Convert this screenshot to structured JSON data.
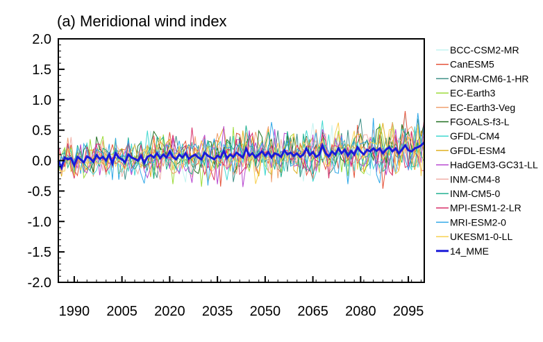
{
  "chart_data": {
    "type": "line",
    "title": "(a) Meridional wind index",
    "xlabel": "",
    "ylabel": "",
    "xlim": [
      1985,
      2100
    ],
    "ylim": [
      -2.0,
      2.0
    ],
    "xticks": [
      1990,
      2005,
      2020,
      2035,
      2050,
      2065,
      2080,
      2095
    ],
    "yticks": [
      -2.0,
      -1.5,
      -1.0,
      -0.5,
      0.0,
      0.5,
      1.0,
      1.5,
      2.0
    ],
    "ytick_labels": [
      "-2.0",
      "-1.5",
      "-1.0",
      "-0.5",
      "0.0",
      "0.5",
      "1.0",
      "1.5",
      "2.0"
    ],
    "grid": false,
    "legend_position": "right",
    "x": [
      1985,
      1986,
      1987,
      1988,
      1989,
      1990,
      1991,
      1992,
      1993,
      1994,
      1995,
      1996,
      1997,
      1998,
      1999,
      2000,
      2001,
      2002,
      2003,
      2004,
      2005,
      2006,
      2007,
      2008,
      2009,
      2010,
      2011,
      2012,
      2013,
      2014,
      2015,
      2016,
      2017,
      2018,
      2019,
      2020,
      2021,
      2022,
      2023,
      2024,
      2025,
      2026,
      2027,
      2028,
      2029,
      2030,
      2031,
      2032,
      2033,
      2034,
      2035,
      2036,
      2037,
      2038,
      2039,
      2040,
      2041,
      2042,
      2043,
      2044,
      2045,
      2046,
      2047,
      2048,
      2049,
      2050,
      2051,
      2052,
      2053,
      2054,
      2055,
      2056,
      2057,
      2058,
      2059,
      2060,
      2061,
      2062,
      2063,
      2064,
      2065,
      2066,
      2067,
      2068,
      2069,
      2070,
      2071,
      2072,
      2073,
      2074,
      2075,
      2076,
      2077,
      2078,
      2079,
      2080,
      2081,
      2082,
      2083,
      2084,
      2085,
      2086,
      2087,
      2088,
      2089,
      2090,
      2091,
      2092,
      2093,
      2094,
      2095,
      2096,
      2097,
      2098,
      2099,
      2100
    ],
    "series": [
      {
        "name": "BCC-CSM2-MR",
        "color": "#c3f3f0"
      },
      {
        "name": "CanESM5",
        "color": "#e5533a"
      },
      {
        "name": "CNRM-CM6-1-HR",
        "color": "#3d8f86"
      },
      {
        "name": "EC-Earth3",
        "color": "#9ddb3a"
      },
      {
        "name": "EC-Earth3-Veg",
        "color": "#f0a070"
      },
      {
        "name": "FGOALS-f3-L",
        "color": "#1f6e1f"
      },
      {
        "name": "GFDL-CM4",
        "color": "#40d8d0"
      },
      {
        "name": "GFDL-ESM4",
        "color": "#e0b020"
      },
      {
        "name": "HadGEM3-GC31-LL",
        "color": "#b848d0"
      },
      {
        "name": "INM-CM4-8",
        "color": "#f0b0a8"
      },
      {
        "name": "INM-CM5-0",
        "color": "#20b090"
      },
      {
        "name": "MPI-ESM1-2-LR",
        "color": "#d8306a"
      },
      {
        "name": "MRI-ESM2-0",
        "color": "#30a8e8"
      },
      {
        "name": "UKESM1-0-LL",
        "color": "#f8d050"
      },
      {
        "name": "14_MME",
        "color": "#1a1ad8",
        "highlight": true,
        "values": [
          0.0,
          -0.12,
          0.05,
          0.02,
          0.04,
          -0.08,
          0.06,
          0.02,
          -0.03,
          0.07,
          0.04,
          -0.02,
          0.09,
          0.03,
          0.06,
          0.0,
          0.1,
          -0.05,
          0.12,
          0.05,
          0.02,
          -0.03,
          0.1,
          0.05,
          0.03,
          0.0,
          0.08,
          -0.04,
          0.06,
          0.09,
          0.05,
          0.12,
          0.04,
          0.1,
          0.05,
          0.15,
          0.06,
          0.02,
          0.1,
          0.05,
          0.12,
          0.03,
          0.07,
          0.1,
          0.05,
          0.02,
          0.13,
          0.08,
          0.05,
          0.02,
          0.08,
          0.05,
          0.16,
          0.04,
          0.1,
          0.06,
          0.13,
          0.09,
          0.05,
          0.2,
          0.08,
          0.12,
          0.05,
          0.1,
          0.15,
          0.08,
          0.14,
          0.05,
          0.12,
          0.1,
          0.06,
          0.17,
          0.1,
          0.13,
          0.08,
          0.12,
          0.06,
          0.1,
          0.2,
          0.09,
          0.14,
          0.06,
          0.1,
          0.25,
          0.12,
          0.07,
          0.15,
          0.1,
          0.2,
          0.12,
          0.18,
          0.08,
          0.16,
          0.1,
          0.22,
          0.15,
          0.1,
          0.18,
          0.15,
          0.2,
          0.16,
          0.2,
          0.12,
          0.18,
          0.22,
          0.15,
          0.2,
          0.12,
          0.18,
          0.25,
          0.17,
          0.15,
          0.2,
          0.22,
          0.25,
          0.3
        ]
      }
    ]
  }
}
